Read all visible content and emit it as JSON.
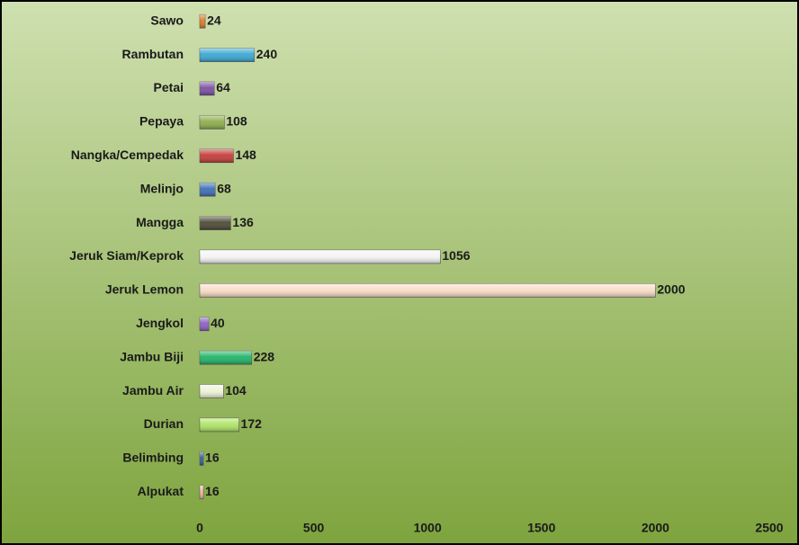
{
  "chart_data": {
    "type": "hbar",
    "categories": [
      "Sawo",
      "Rambutan",
      "Petai",
      "Pepaya",
      "Nangka/Cempedak",
      "Melinjo",
      "Mangga",
      "Jeruk Siam/Keprok",
      "Jeruk Lemon",
      "Jengkol",
      "Jambu Biji",
      "Jambu Air",
      "Durian",
      "Belimbing",
      "Alpukat"
    ],
    "values": [
      24,
      240,
      64,
      108,
      148,
      68,
      136,
      1056,
      2000,
      40,
      228,
      104,
      172,
      16,
      16
    ],
    "colors": [
      "#e07a25",
      "#3aa7d3",
      "#7b4fa3",
      "#8eae4c",
      "#c43d38",
      "#3d6fb6",
      "#4d4a36",
      "#f4f4f4",
      "#f8dcc6",
      "#8c5fc4",
      "#1fb366",
      "#eef3d8",
      "#aee466",
      "#2f5f9f",
      "#f2b3a2"
    ],
    "xlim": [
      0,
      2500
    ],
    "xticks": [
      0,
      500,
      1000,
      1500,
      2000,
      2500
    ]
  }
}
